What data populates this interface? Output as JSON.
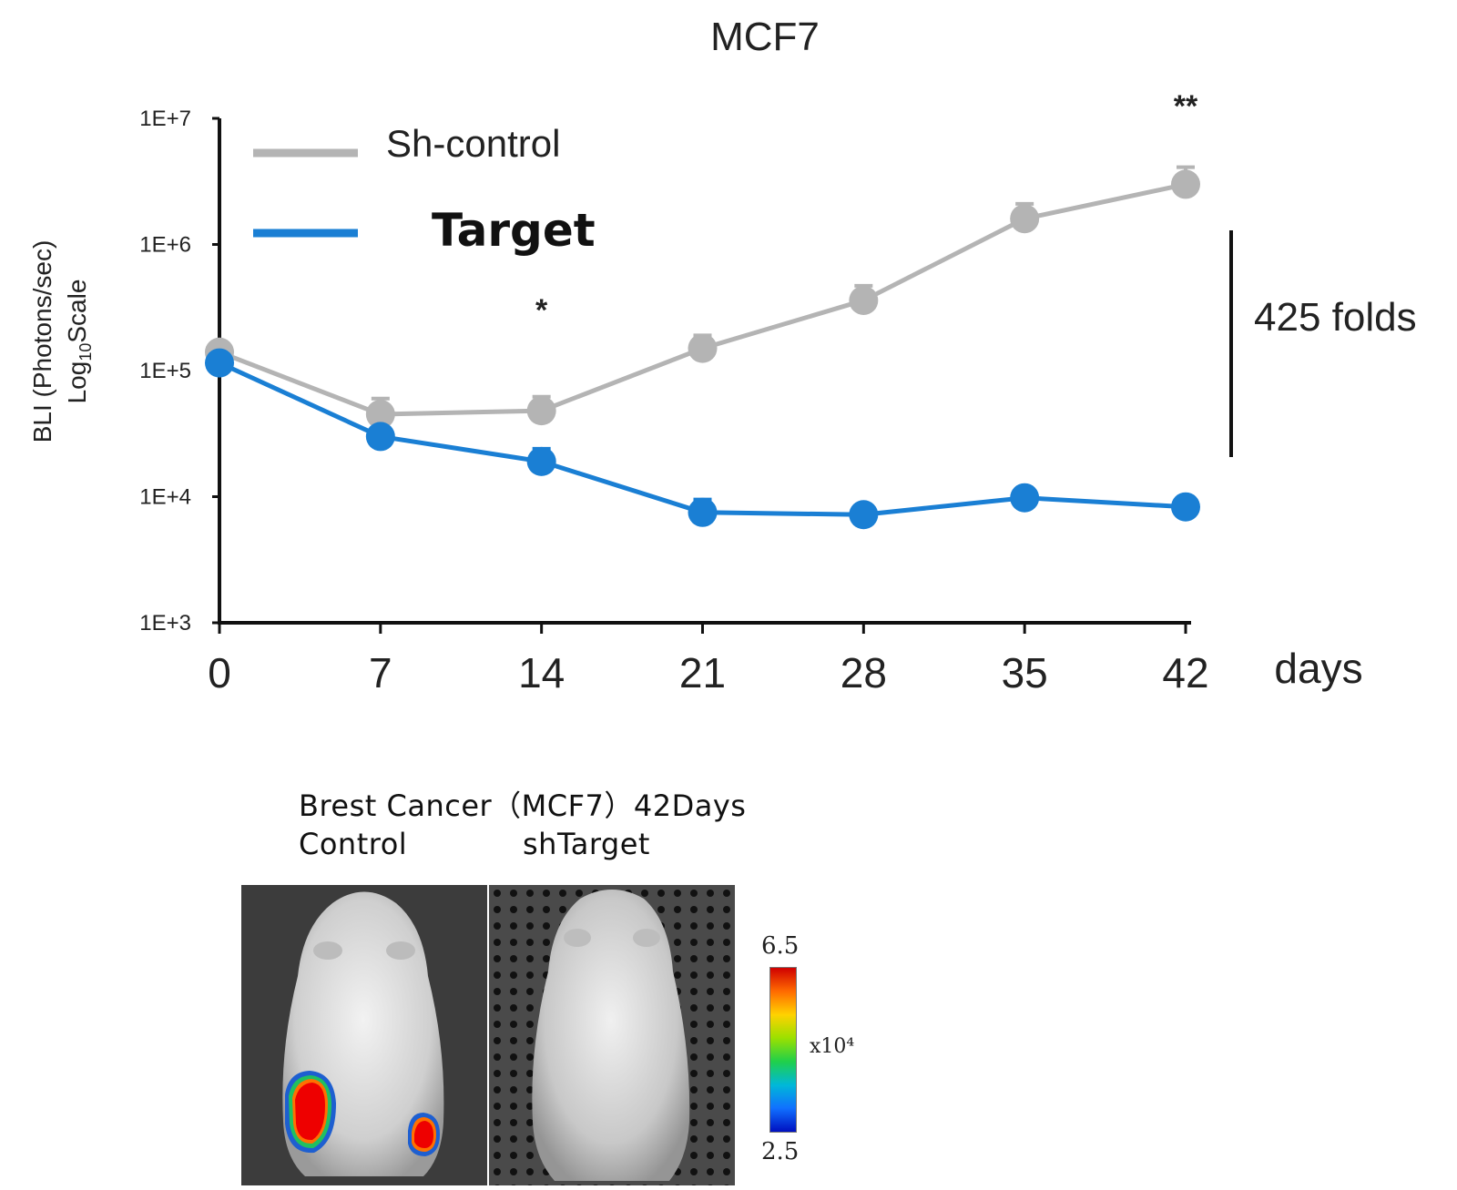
{
  "chart_data": {
    "type": "line",
    "title": "MCF7",
    "ylabel_line1": "BLI (Photons/sec)",
    "ylabel_line2_prefix": "Log",
    "ylabel_line2_sub": "10",
    "ylabel_line2_suffix": "Scale",
    "xlabel": "days",
    "yscale": "log",
    "ylim": [
      1000,
      10000000
    ],
    "xlim": [
      0,
      42
    ],
    "x": [
      0,
      7,
      14,
      21,
      28,
      35,
      42
    ],
    "xtick_labels": [
      "0",
      "7",
      "14",
      "21",
      "28",
      "35",
      "42"
    ],
    "ytick_values": [
      1000,
      10000,
      100000,
      1000000,
      10000000
    ],
    "ytick_labels": [
      "1E+3",
      "1E+4",
      "1E+5",
      "1E+6",
      "1E+7"
    ],
    "series": [
      {
        "name": "Sh-control",
        "color": "#b4b4b4",
        "values": [
          140000,
          45000,
          48000,
          150000,
          360000,
          1600000,
          3000000
        ],
        "error_upper": [
          160000,
          60000,
          62000,
          190000,
          470000,
          2100000,
          4100000
        ]
      },
      {
        "name": "Target",
        "color": "#1a7fd4",
        "values": [
          115000,
          30000,
          19000,
          7500,
          7200,
          9800,
          8300
        ],
        "error_upper": [
          125000,
          33000,
          24000,
          9500,
          7700,
          11000,
          9000
        ]
      }
    ],
    "annotations": [
      {
        "text": "*",
        "x": 14
      },
      {
        "text": "**",
        "x": 42
      }
    ],
    "fold_bracket": {
      "text": "425 folds",
      "from": 10000,
      "to": 1000000
    },
    "grid": false,
    "legend": "top-left"
  },
  "image_panel": {
    "caption_line1": "Brest Cancer（MCF7）42Days",
    "label_control": "Control",
    "label_target": "shTarget",
    "colorbar": {
      "max": "6.5",
      "min": "2.5",
      "unit": "x10⁴",
      "colors": [
        "#d00000",
        "#ff6a00",
        "#ffd200",
        "#9be000",
        "#20d04a",
        "#00b8d8",
        "#1070ff",
        "#0010c0"
      ]
    }
  }
}
